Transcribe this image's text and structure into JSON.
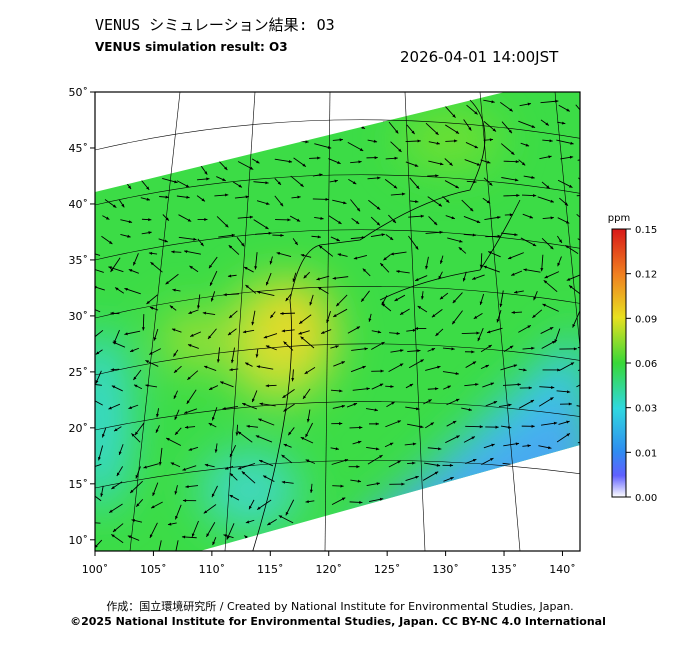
{
  "header": {
    "title_jp": "VENUS シミュレーション結果: O3",
    "title_en": "VENUS simulation result: O3",
    "timestamp": "2026-04-01 14:00JST"
  },
  "map": {
    "xlim": [
      100,
      141.5
    ],
    "ylim": [
      9,
      50
    ],
    "xticks": [
      {
        "value": 100,
        "label": "100˚"
      },
      {
        "value": 105,
        "label": "105˚"
      },
      {
        "value": 110,
        "label": "110˚"
      },
      {
        "value": 115,
        "label": "115˚"
      },
      {
        "value": 120,
        "label": "120˚"
      },
      {
        "value": 125,
        "label": "125˚"
      },
      {
        "value": 130,
        "label": "130˚"
      },
      {
        "value": 135,
        "label": "135˚"
      },
      {
        "value": 140,
        "label": "140˚"
      }
    ],
    "yticks": [
      {
        "value": 10,
        "label": "10˚"
      },
      {
        "value": 15,
        "label": "15˚"
      },
      {
        "value": 20,
        "label": "20˚"
      },
      {
        "value": 25,
        "label": "25˚"
      },
      {
        "value": 30,
        "label": "30˚"
      },
      {
        "value": 35,
        "label": "35˚"
      },
      {
        "value": 40,
        "label": "40˚"
      },
      {
        "value": 45,
        "label": "45˚"
      },
      {
        "value": 50,
        "label": "50˚"
      }
    ]
  },
  "colorbar": {
    "unit": "ppm",
    "ticks": [
      {
        "value": 0,
        "label": "0.00"
      },
      {
        "value": 0.01,
        "label": "0.01"
      },
      {
        "value": 0.03,
        "label": "0.03"
      },
      {
        "value": 0.06,
        "label": "0.06"
      },
      {
        "value": 0.09,
        "label": "0.09"
      },
      {
        "value": 0.12,
        "label": "0.12"
      },
      {
        "value": 0.15,
        "label": "0.15"
      }
    ]
  },
  "footer": {
    "line1": "作成：国立環境研究所 / Created by National Institute for Environmental Studies, Japan.",
    "line2": "©2025 National Institute for Environmental Studies, Japan. CC BY-NC 4.0 International"
  }
}
